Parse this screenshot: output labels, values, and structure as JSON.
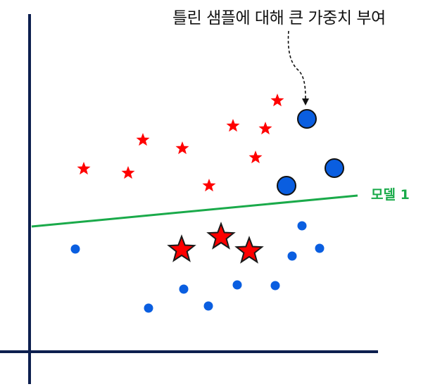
{
  "annotation": {
    "text": "틀린 샘플에 대해 큰 가중치 부여"
  },
  "model": {
    "label": "모델 1",
    "color": "#1aaa4a"
  },
  "colors": {
    "axis": "#0d1f4f",
    "star_fill": "#ff0000",
    "star_stroke": "#1a1a1a",
    "dot_fill": "#0a5ee0",
    "big_dot_stroke": "#111111"
  },
  "legend": {
    "star_class": "star-icon",
    "dot_class": "circle-icon"
  }
}
